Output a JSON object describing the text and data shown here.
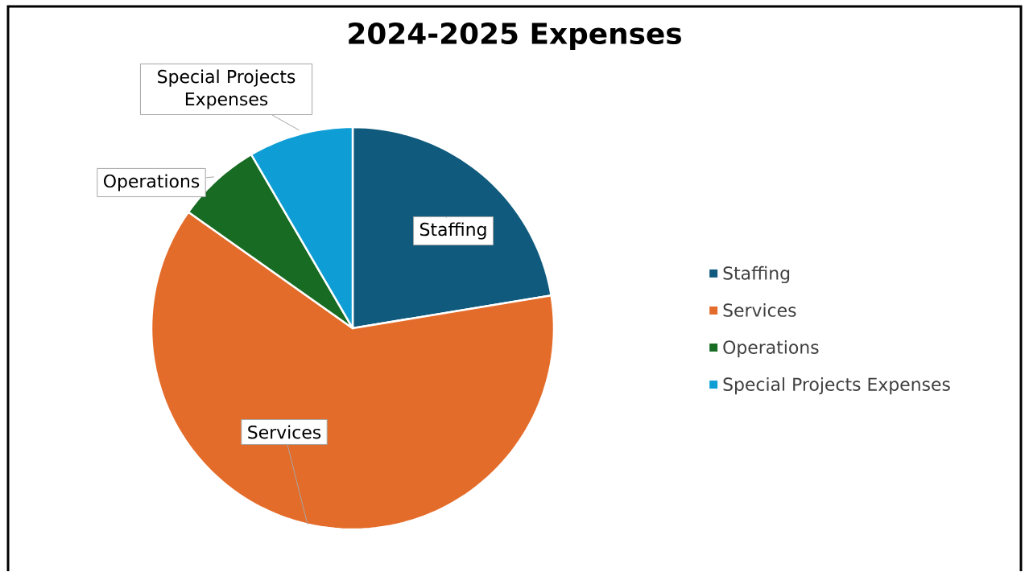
{
  "chart_data": {
    "type": "pie",
    "title": "2024-2025 Expenses",
    "categories": [
      "Staffing",
      "Services",
      "Operations",
      "Special Projects Expenses"
    ],
    "values": [
      22.4,
      62.4,
      6.8,
      8.4
    ],
    "colors": [
      "#0f5a7d",
      "#e46c2a",
      "#176b23",
      "#0e9ed5"
    ],
    "legend": "right"
  }
}
